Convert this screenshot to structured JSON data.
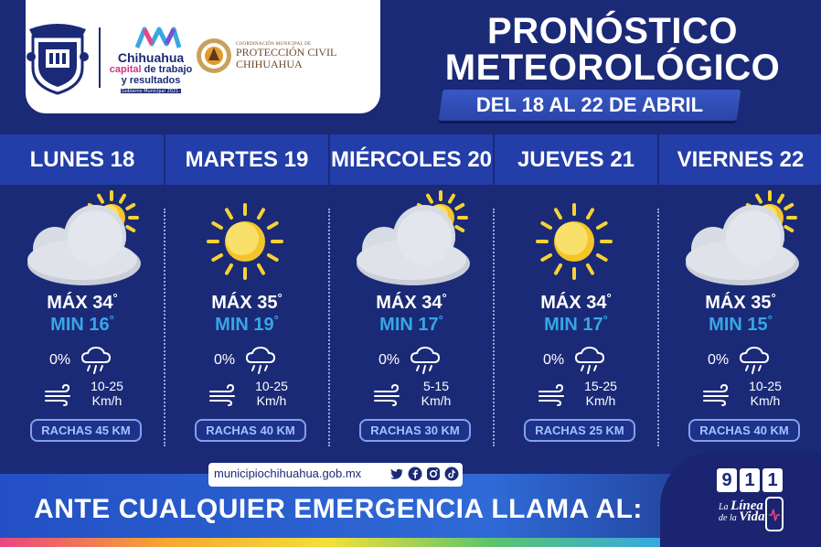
{
  "header": {
    "municipality": {
      "name": "Chihuahua",
      "tagline_pink": "capital",
      "tagline_blue_1": "de trabajo",
      "tagline_blue_2": "y resultados",
      "bar_text": "Gobierno Municipal 2021-2024"
    },
    "proteccion_civil": {
      "small": "COORDINACIÓN MUNICIPAL DE",
      "line1": "PROTECCIÓN CIVIL",
      "line2": "CHIHUAHUA"
    }
  },
  "title": {
    "line1": "PRONÓSTICO",
    "line2": "METEOROLÓGICO",
    "dates": "DEL 18 AL 22 DE ABRIL"
  },
  "days": [
    {
      "name": "LUNES 18",
      "icon": "cloud-sun-icon",
      "max": "MÁX 34",
      "min": "MIN 16",
      "rain": "0%",
      "wind_1": "10-25",
      "wind_2": "Km/h",
      "gust": "RACHAS 45 KM"
    },
    {
      "name": "MARTES 19",
      "icon": "sun-icon",
      "max": "MÁX 35",
      "min": "MIN 19",
      "rain": "0%",
      "wind_1": "10-25",
      "wind_2": "Km/h",
      "gust": "RACHAS 40 KM"
    },
    {
      "name": "MIÉRCOLES 20",
      "icon": "cloud-sun-icon",
      "max": "MÁX 34",
      "min": "MIN 17",
      "rain": "0%",
      "wind_1": "5-15",
      "wind_2": "Km/h",
      "gust": "RACHAS 30 KM"
    },
    {
      "name": "JUEVES 21",
      "icon": "sun-icon",
      "max": "MÁX 34",
      "min": "MIN 17",
      "rain": "0%",
      "wind_1": "15-25",
      "wind_2": "Km/h",
      "gust": "RACHAS 25 KM"
    },
    {
      "name": "VIERNES 22",
      "icon": "cloud-sun-icon",
      "max": "MÁX 35",
      "min": "MIN 15",
      "rain": "0%",
      "wind_1": "10-25",
      "wind_2": "Km/h",
      "gust": "RACHAS 40 KM"
    }
  ],
  "degree_symbol": "°",
  "footer": {
    "url": "municipiochihuahua.gob.mx",
    "social_icons": [
      "twitter-icon",
      "facebook-icon",
      "instagram-icon",
      "tiktok-icon"
    ],
    "emergency": "ANTE CUALQUIER EMERGENCIA LLAMA AL:",
    "emergency_number": [
      "9",
      "1",
      "1"
    ],
    "linea_1": "La",
    "linea_2": "Línea",
    "linea_3": "de la",
    "linea_4": "Vida"
  },
  "colors": {
    "background": "#1b2a77",
    "day_band": "#233ea8",
    "min_temp": "#35a7e6",
    "gust_text": "#9fc3ff",
    "sun": "#f7d234",
    "cloud": "#d7dbe3"
  }
}
